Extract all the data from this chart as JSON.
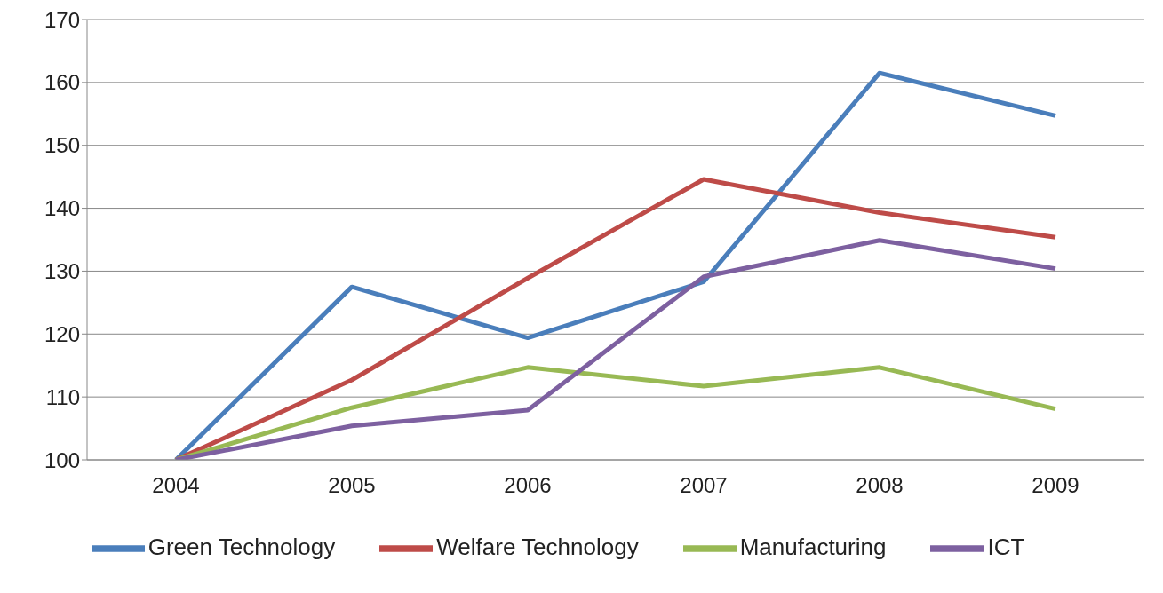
{
  "chart_data": {
    "type": "line",
    "categories": [
      "2004",
      "2005",
      "2006",
      "2007",
      "2008",
      "2009"
    ],
    "series": [
      {
        "name": "Green Technology",
        "color": "#4a7ebb",
        "values": [
          100,
          127.5,
          119.4,
          128.3,
          161.5,
          154.7
        ]
      },
      {
        "name": "Welfare Technology",
        "color": "#be4b48",
        "values": [
          100,
          112.7,
          128.9,
          144.6,
          139.3,
          135.4
        ]
      },
      {
        "name": "Manufacturing",
        "color": "#98b954",
        "values": [
          100,
          108.3,
          114.7,
          111.7,
          114.7,
          108.1
        ]
      },
      {
        "name": "ICT",
        "color": "#7d60a0",
        "values": [
          100,
          105.4,
          107.9,
          129.1,
          134.9,
          130.4
        ]
      }
    ],
    "ylim": [
      100,
      170
    ],
    "yticks": [
      100,
      110,
      120,
      130,
      140,
      150,
      160,
      170
    ],
    "grid": "y",
    "legend": "bottom",
    "marker": "none",
    "line_style": "solid"
  }
}
